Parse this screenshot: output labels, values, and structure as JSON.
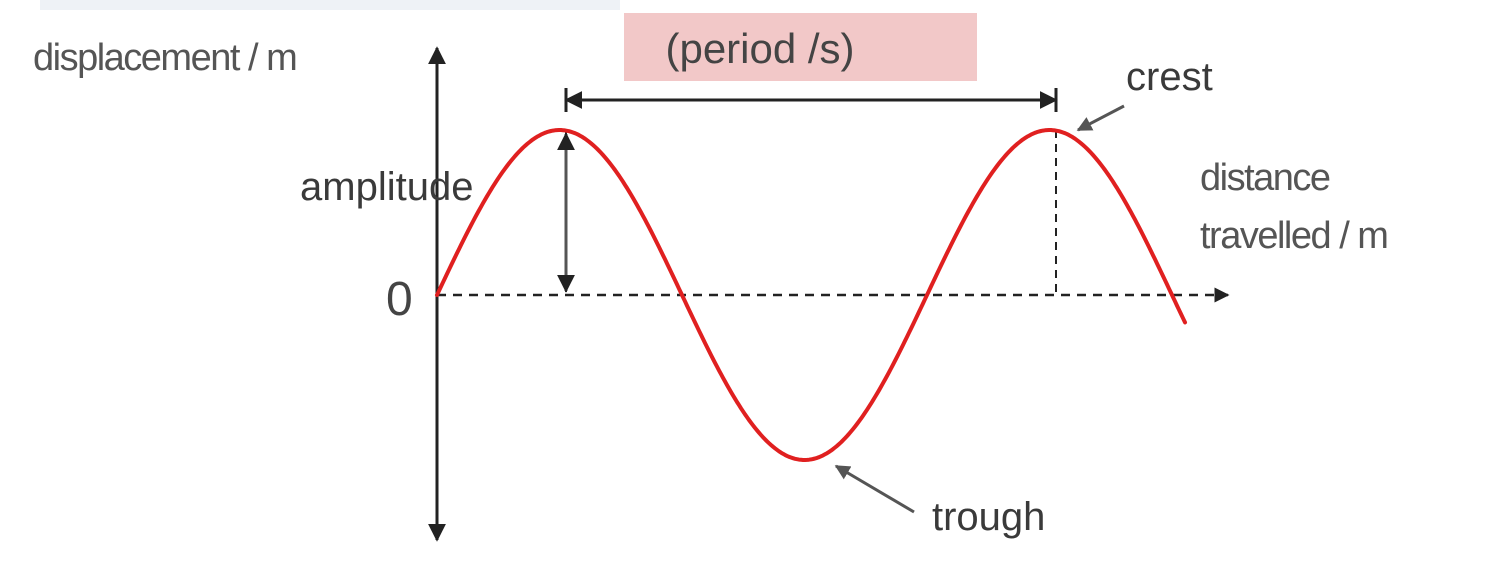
{
  "diagram": {
    "y_axis_label": "displacement / m",
    "x_axis_label_line1": "distance",
    "x_axis_label_line2": "travelled / m",
    "origin_label": "0",
    "amplitude_label": "amplitude",
    "period_label": "(period /s)",
    "crest_label": "crest",
    "trough_label": "trough"
  },
  "colors": {
    "wave": "#e02020",
    "axis": "#222222",
    "dimension_line": "#333333",
    "pointer": "#555555",
    "period_box": "#f2c8c8",
    "text": "#555555"
  }
}
